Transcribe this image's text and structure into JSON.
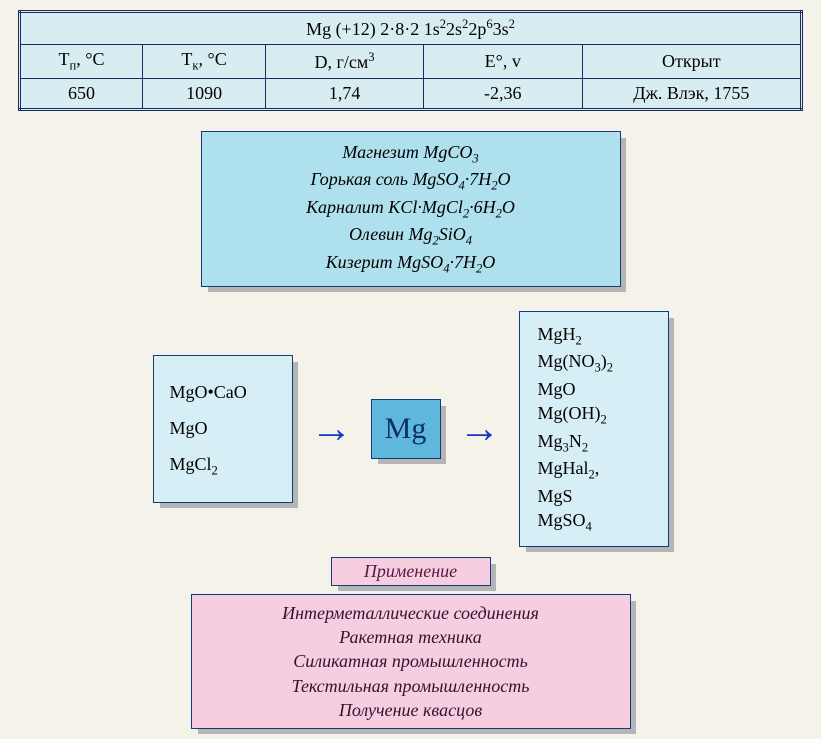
{
  "table": {
    "title_html": "Mg (+12) 2·8·2 1s<sup>2</sup>2s<sup>2</sup>2p<sup>6</sup>3s<sup>2</sup>",
    "headers": {
      "tp": "T<sub>п</sub>, °C",
      "tk": "T<sub>к</sub>, °C",
      "d": "D, г/см<sup>3</sup>",
      "e": "E°, v",
      "discovered": "Открыт"
    },
    "values": {
      "tp": "650",
      "tk": "1090",
      "d": "1,74",
      "e": "-2,36",
      "discovered": "Дж. Влэк, 1755"
    },
    "col_widths": [
      "120",
      "120",
      "160",
      "160",
      "225"
    ]
  },
  "minerals": [
    "Магнезит  MgCO<sub>3</sub>",
    "Горькая соль  MgSO<sub>4</sub>·7H<sub>2</sub>O",
    "Карналит KCl·MgCl<sub>2</sub>·6H<sub>2</sub>O",
    "Олевин  Mg<sub>2</sub>SiO<sub>4</sub>",
    "Кизерит  MgSO<sub>4</sub>·7H<sub>2</sub>O"
  ],
  "sources": [
    "MgO•CaO",
    "MgO",
    "MgCl<sub>2</sub>"
  ],
  "center": "Mg",
  "compounds": [
    "MgH<sub>2</sub>",
    "Mg(NO<sub>3</sub>)<sub>2</sub>",
    "MgO",
    "Mg(OH)<sub>2</sub>",
    "Mg<sub>3</sub>N<sub>2</sub>",
    "MgHal<sub>2</sub>,",
    "MgS",
    "MgSO<sub>4</sub>"
  ],
  "app_label": "Применение",
  "applications": [
    "Интерметаллические соединения",
    "Ракетная техника",
    "Силикатная промышленность",
    "Текстильная промышленность",
    "Получение квасцов"
  ],
  "colors": {
    "table_bg": "#d8edf2",
    "border": "#1b2a5a",
    "minerals_bg": "#aee0ee",
    "light_blue": "#d6eef5",
    "center_bg": "#5fb8db",
    "pink": "#f7cde0",
    "arrow": "#1438c8"
  }
}
